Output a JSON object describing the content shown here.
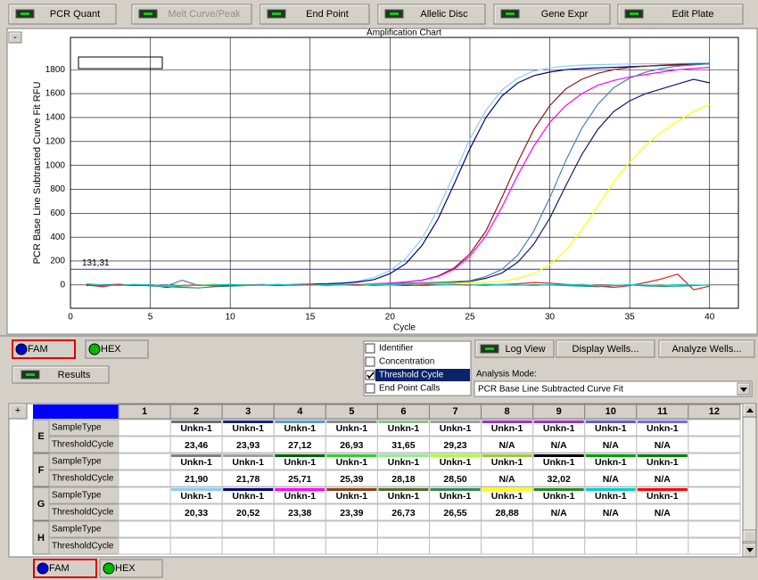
{
  "tabs": [
    {
      "label": "PCR Quant",
      "enabled": true
    },
    {
      "label": "Melt Curve/Peak",
      "enabled": false
    },
    {
      "label": "End Point",
      "enabled": true
    },
    {
      "label": "Allelic Disc",
      "enabled": true
    },
    {
      "label": "Gene Expr",
      "enabled": true
    },
    {
      "label": "Edit Plate",
      "enabled": true
    }
  ],
  "collapse_button": "-",
  "amplification_chart": {
    "type": "line",
    "title": "Amplification Chart",
    "x_label": "Cycle",
    "y_label": "PCR Base Line Subtracted Curve Fit RFU",
    "xlim": [
      0,
      41.8
    ],
    "ylim": [
      -195,
      2070
    ],
    "xticks": [
      0,
      5,
      10,
      15,
      20,
      25,
      30,
      35,
      40
    ],
    "yticks": [
      0,
      200,
      400,
      600,
      800,
      1000,
      1200,
      1400,
      1600,
      1800
    ],
    "grid": true,
    "threshold": {
      "value": 131.31,
      "label": "131,31",
      "color": "#2233cc"
    },
    "x": [
      1,
      2,
      3,
      4,
      5,
      6,
      7,
      8,
      9,
      10,
      11,
      12,
      13,
      14,
      15,
      16,
      17,
      18,
      19,
      20,
      21,
      22,
      23,
      24,
      25,
      26,
      27,
      28,
      29,
      30,
      31,
      32,
      33,
      34,
      35,
      36,
      37,
      38,
      39,
      40
    ],
    "series": [
      {
        "color": "#87cefa",
        "values": [
          5,
          -5,
          0,
          3,
          -4,
          -10,
          0,
          -3,
          5,
          0,
          2,
          -2,
          3,
          0,
          5,
          8,
          15,
          33,
          63,
          120,
          222,
          388,
          630,
          925,
          1220,
          1460,
          1630,
          1730,
          1790,
          1815,
          1830,
          1838,
          1842,
          1845,
          1848,
          1850,
          1850,
          1852,
          1855,
          1858
        ]
      },
      {
        "color": "#000080",
        "values": [
          0,
          -8,
          2,
          -3,
          0,
          -15,
          -5,
          0,
          3,
          -2,
          0,
          2,
          0,
          4,
          6,
          10,
          15,
          25,
          45,
          95,
          180,
          330,
          550,
          840,
          1140,
          1400,
          1580,
          1690,
          1750,
          1780,
          1800,
          1810,
          1815,
          1820,
          1825,
          1830,
          1835,
          1840,
          1845,
          1850
        ]
      },
      {
        "color": "#8b1a1a",
        "values": [
          -5,
          0,
          5,
          -2,
          0,
          -8,
          -3,
          0,
          2,
          -4,
          0,
          3,
          -2,
          0,
          2,
          0,
          3,
          5,
          10,
          15,
          25,
          40,
          75,
          140,
          260,
          450,
          730,
          1030,
          1300,
          1500,
          1640,
          1720,
          1770,
          1800,
          1820,
          1830,
          1838,
          1845,
          1848,
          1850
        ]
      },
      {
        "color": "#ff00ff",
        "values": [
          3,
          -3,
          0,
          2,
          -6,
          -12,
          -4,
          0,
          -2,
          3,
          0,
          -3,
          2,
          0,
          3,
          -2,
          0,
          4,
          8,
          15,
          25,
          40,
          70,
          130,
          240,
          410,
          650,
          920,
          1160,
          1360,
          1500,
          1600,
          1670,
          1710,
          1740,
          1760,
          1780,
          1800,
          1810,
          1820
        ]
      },
      {
        "color": "#191970",
        "values": [
          -2,
          2,
          0,
          -4,
          0,
          -20,
          -8,
          -3,
          0,
          2,
          -3,
          0,
          2,
          -2,
          0,
          3,
          0,
          -2,
          2,
          5,
          8,
          12,
          18,
          22,
          30,
          55,
          100,
          190,
          340,
          560,
          830,
          1090,
          1300,
          1450,
          1540,
          1600,
          1640,
          1680,
          1720,
          1690
        ]
      },
      {
        "color": "#4682b4",
        "values": [
          8,
          0,
          -5,
          0,
          3,
          -10,
          40,
          -5,
          0,
          -3,
          2,
          0,
          -2,
          3,
          0,
          -2,
          2,
          5,
          8,
          10,
          15,
          18,
          22,
          28,
          35,
          70,
          130,
          250,
          450,
          730,
          1040,
          1310,
          1510,
          1650,
          1730,
          1780,
          1810,
          1830,
          1840,
          1850
        ]
      },
      {
        "color": "#ffff00",
        "values": [
          0,
          -5,
          2,
          0,
          -3,
          -8,
          -2,
          0,
          3,
          -2,
          0,
          2,
          -3,
          0,
          2,
          0,
          -2,
          3,
          5,
          2,
          8,
          10,
          12,
          15,
          20,
          25,
          30,
          55,
          95,
          170,
          290,
          460,
          660,
          860,
          1030,
          1170,
          1280,
          1370,
          1450,
          1510
        ]
      },
      {
        "color": "#2e8b57",
        "values": [
          0,
          -5,
          3,
          0,
          -8,
          -15,
          -20,
          -25,
          -15,
          -10,
          -5,
          0,
          3,
          -2,
          0,
          5,
          2,
          0,
          -3,
          0,
          2,
          -5,
          0,
          3,
          -2,
          5,
          0,
          -3,
          2,
          0,
          -5,
          -10,
          -15,
          -5,
          0,
          -8,
          -12,
          -10,
          -5,
          0
        ]
      },
      {
        "color": "#e02020",
        "values": [
          0,
          -15,
          5,
          -5,
          0,
          -10,
          -5,
          0,
          -8,
          -3,
          0,
          2,
          -5,
          0,
          3,
          -2,
          0,
          2,
          -3,
          0,
          -5,
          0,
          3,
          5,
          0,
          -2,
          3,
          10,
          20,
          15,
          5,
          0,
          -10,
          -20,
          -5,
          20,
          50,
          90,
          -40,
          -10
        ]
      },
      {
        "color": "#00ced1",
        "values": [
          10,
          0,
          -5,
          5,
          0,
          -12,
          -8,
          -3,
          0,
          5,
          -2,
          0,
          4,
          0,
          -3,
          2,
          0,
          -5,
          3,
          0,
          8,
          12,
          5,
          0,
          -3,
          5,
          2,
          0,
          -5,
          3,
          0,
          5,
          -8,
          -3,
          2,
          0,
          -5,
          3,
          0,
          -2
        ]
      }
    ]
  },
  "dye_tabs": [
    {
      "label": "FAM",
      "color": "#0000cc",
      "selected": true
    },
    {
      "label": "HEX",
      "color": "#00bb00",
      "selected": false
    }
  ],
  "results_button": "Results",
  "view_options": [
    {
      "label": "Identifier",
      "checked": false,
      "selected": false
    },
    {
      "label": "Concentration",
      "checked": false,
      "selected": false
    },
    {
      "label": "Threshold Cycle",
      "checked": true,
      "selected": true
    },
    {
      "label": "End Point Calls",
      "checked": false,
      "selected": false
    }
  ],
  "buttons": [
    "Log View",
    "Display Wells...",
    "Analyze Wells..."
  ],
  "analysis_mode": {
    "label": "Analysis Mode:",
    "value": "PCR Base Line Subtracted Curve Fit"
  },
  "table": {
    "corner": "+",
    "columns": [
      1,
      2,
      3,
      4,
      5,
      6,
      7,
      8,
      9,
      10,
      11,
      12
    ],
    "field_labels": [
      "SampleType",
      "ThresholdCycle"
    ],
    "rows": [
      {
        "label": "E",
        "sample_type": [
          null,
          "Unkn-1",
          "Unkn-1",
          "Unkn-1",
          "Unkn-1",
          "Unkn-1",
          "Unkn-1",
          "Unkn-1",
          "Unkn-1",
          "Unkn-1",
          "Unkn-1",
          null
        ],
        "threshold_cycle": [
          null,
          "23,46",
          "23,93",
          "27,12",
          "26,93",
          "31,65",
          "29,23",
          "N/A",
          "N/A",
          "N/A",
          "N/A",
          null
        ],
        "colors": [
          null,
          "#707070",
          "#1a237e",
          "#5b9bd5",
          "#8b8b8b",
          "#90c090",
          "#a0a0a0",
          "#9933cc",
          "#9932cc",
          "#6a5acd",
          "#7b68ee",
          null
        ]
      },
      {
        "label": "F",
        "sample_type": [
          null,
          "Unkn-1",
          "Unkn-1",
          "Unkn-1",
          "Unkn-1",
          "Unkn-1",
          "Unkn-1",
          "Unkn-1",
          "Unkn-1",
          "Unkn-1",
          "Unkn-1",
          null
        ],
        "threshold_cycle": [
          null,
          "21,90",
          "21,78",
          "25,71",
          "25,39",
          "28,18",
          "28,50",
          "N/A",
          "32,02",
          "N/A",
          "N/A",
          null
        ],
        "colors": [
          null,
          "#808080",
          "#a0a0a0",
          "#006400",
          "#32cd32",
          "#90ee90",
          "#adff2f",
          "#9acd32",
          "#000000",
          "#00a000",
          "#008000",
          null
        ]
      },
      {
        "label": "G",
        "sample_type": [
          null,
          "Unkn-1",
          "Unkn-1",
          "Unkn-1",
          "Unkn-1",
          "Unkn-1",
          "Unkn-1",
          "Unkn-1",
          "Unkn-1",
          "Unkn-1",
          "Unkn-1",
          null
        ],
        "threshold_cycle": [
          null,
          "20,33",
          "20,52",
          "23,38",
          "23,39",
          "26,73",
          "26,55",
          "28,88",
          "N/A",
          "N/A",
          "N/A",
          null
        ],
        "colors": [
          null,
          "#87cefa",
          "#000080",
          "#ff00ff",
          "#8b4513",
          "#556b2f",
          "#2e8b57",
          "#ffff00",
          "#228b22",
          "#00ced1",
          "#ff0000",
          null
        ]
      },
      {
        "label": "H",
        "sample_type": [
          null,
          null,
          null,
          null,
          null,
          null,
          null,
          null,
          null,
          null,
          null,
          null
        ],
        "threshold_cycle": [
          null,
          null,
          null,
          null,
          null,
          null,
          null,
          null,
          null,
          null,
          null,
          null
        ],
        "colors": [
          null,
          null,
          null,
          null,
          null,
          null,
          null,
          null,
          null,
          null,
          null,
          null
        ]
      }
    ]
  }
}
